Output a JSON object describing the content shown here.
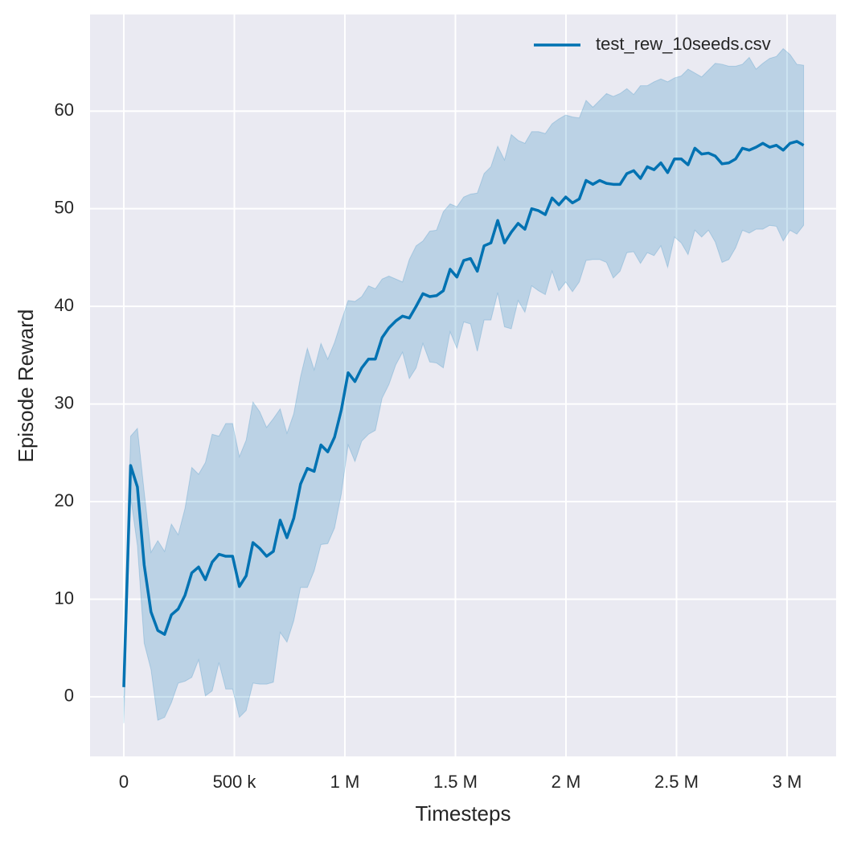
{
  "chart_data": {
    "type": "line",
    "xlabel": "Timesteps",
    "ylabel": "Episode Reward",
    "xlim": [
      -152700,
      3222000
    ],
    "ylim": [
      -6.1,
      69.9
    ],
    "xticks": [
      0,
      {
        "value": 500000,
        "label": "500 k"
      },
      {
        "value": 1000000,
        "label": "1 M"
      },
      {
        "value": 1500000,
        "label": "1.5 M"
      },
      {
        "value": 2000000,
        "label": "2 M"
      },
      {
        "value": 2500000,
        "label": "2.5 M"
      },
      {
        "value": 3000000,
        "label": "3 M"
      }
    ],
    "yticks": [
      0,
      10,
      20,
      30,
      40,
      50,
      60
    ],
    "grid": true,
    "legend": "upper right",
    "x": [
      0,
      30750,
      61500,
      92250,
      123000,
      153750,
      184500,
      215250,
      246000,
      276750,
      307500,
      338250,
      369000,
      399750,
      430500,
      461250,
      492000,
      522750,
      553500,
      584250,
      615000,
      645750,
      676500,
      707250,
      738000,
      768750,
      799500,
      830250,
      861000,
      891750,
      922500,
      953250,
      984000,
      1014750,
      1045500,
      1076250,
      1107000,
      1137750,
      1168500,
      1199250,
      1230000,
      1260750,
      1291500,
      1322250,
      1353000,
      1383750,
      1414500,
      1445250,
      1476000,
      1506750,
      1537500,
      1568250,
      1599000,
      1629750,
      1660500,
      1691250,
      1722000,
      1752750,
      1783500,
      1814250,
      1845000,
      1875750,
      1906500,
      1937250,
      1968000,
      1998750,
      2029500,
      2060250,
      2091000,
      2121750,
      2152500,
      2183250,
      2214000,
      2244750,
      2275500,
      2306250,
      2337000,
      2367750,
      2398500,
      2429250,
      2460000,
      2490750,
      2521500,
      2552250,
      2583000,
      2613750,
      2644500,
      2675250,
      2706000,
      2736750,
      2767500,
      2798250,
      2829000,
      2859750,
      2890500,
      2921250,
      2952000,
      2982750,
      3013500,
      3044250,
      3075000
    ],
    "series": [
      {
        "name": "test_rew_10seeds.csv",
        "color": "#0072b2",
        "values": [
          1,
          23.7,
          21.5,
          13.5,
          8.7,
          6.8,
          6.4,
          8.4,
          9.0,
          10.4,
          12.7,
          13.3,
          12.0,
          13.8,
          14.6,
          14.4,
          14.4,
          11.3,
          12.4,
          15.8,
          15.2,
          14.4,
          14.9,
          18.1,
          16.3,
          18.3,
          21.8,
          23.4,
          23.1,
          25.8,
          25.1,
          26.6,
          29.4,
          33.2,
          32.3,
          33.7,
          34.6,
          34.6,
          36.8,
          37.8,
          38.5,
          39.0,
          38.8,
          40.0,
          41.3,
          41.0,
          41.1,
          41.6,
          43.8,
          43.0,
          44.7,
          44.9,
          43.6,
          46.2,
          46.5,
          48.8,
          46.5,
          47.6,
          48.5,
          47.9,
          50.0,
          49.8,
          49.4,
          51.1,
          50.4,
          51.2,
          50.6,
          51.0,
          52.9,
          52.5,
          52.9,
          52.6,
          52.5,
          52.5,
          53.6,
          53.9,
          53.1,
          54.3,
          54.0,
          54.7,
          53.7,
          55.1,
          55.1,
          54.5,
          56.2,
          55.6,
          55.7,
          55.4,
          54.6,
          54.7,
          55.1,
          56.2,
          56.0,
          56.3,
          56.7,
          56.3,
          56.5,
          56.0,
          56.7,
          56.9,
          56.5
        ],
        "lower": [
          -2.7,
          20.5,
          15.5,
          5.5,
          2.8,
          -2.4,
          -2.1,
          -0.6,
          1.4,
          1.6,
          2.0,
          3.8,
          0.1,
          0.6,
          3.5,
          0.8,
          0.8,
          -2.1,
          -1.4,
          1.4,
          1.3,
          1.3,
          1.5,
          6.6,
          5.6,
          7.8,
          11.2,
          11.2,
          12.9,
          15.6,
          15.7,
          17.3,
          20.8,
          25.8,
          24.1,
          26.2,
          26.9,
          27.3,
          30.6,
          32.0,
          34.0,
          35.3,
          32.6,
          33.7,
          36.2,
          34.3,
          34.2,
          33.7,
          37.4,
          35.7,
          38.4,
          38.2,
          35.4,
          38.6,
          38.6,
          41.4,
          37.9,
          37.7,
          40.6,
          39.4,
          42.1,
          41.6,
          41.2,
          43.6,
          41.6,
          42.5,
          41.5,
          42.5,
          44.7,
          44.8,
          44.8,
          44.5,
          42.9,
          43.6,
          45.5,
          45.6,
          44.4,
          45.5,
          45.2,
          46.2,
          44.0,
          47.1,
          46.5,
          45.3,
          47.8,
          47.1,
          47.8,
          46.6,
          44.5,
          44.8,
          46.0,
          47.8,
          47.5,
          47.9,
          47.9,
          48.3,
          48.2,
          46.7,
          47.8,
          47.4,
          48.3
        ],
        "upper": [
          1.5,
          26.7,
          27.5,
          21.0,
          14.8,
          16.0,
          14.9,
          17.7,
          16.6,
          19.3,
          23.5,
          22.8,
          24.0,
          26.9,
          26.7,
          28.0,
          28.0,
          24.6,
          26.3,
          30.2,
          29.2,
          27.6,
          28.5,
          29.5,
          27.0,
          29.0,
          32.8,
          35.7,
          33.5,
          36.2,
          34.6,
          36.3,
          38.5,
          40.6,
          40.5,
          41.0,
          42.1,
          41.8,
          42.8,
          43.1,
          42.8,
          42.5,
          44.8,
          46.2,
          46.7,
          47.7,
          47.8,
          49.7,
          50.5,
          50.2,
          51.2,
          51.5,
          51.6,
          53.6,
          54.3,
          56.4,
          55.0,
          57.6,
          57.0,
          56.7,
          57.9,
          57.9,
          57.7,
          58.7,
          59.2,
          59.6,
          59.4,
          59.3,
          61.1,
          60.4,
          61.1,
          61.8,
          61.5,
          61.8,
          62.3,
          61.7,
          62.6,
          62.6,
          63.0,
          63.3,
          63.0,
          63.4,
          63.6,
          64.3,
          63.9,
          63.5,
          64.2,
          64.9,
          64.8,
          64.6,
          64.6,
          64.8,
          65.5,
          64.3,
          64.9,
          65.4,
          65.6,
          66.4,
          65.8,
          64.8,
          64.7
        ]
      }
    ]
  }
}
